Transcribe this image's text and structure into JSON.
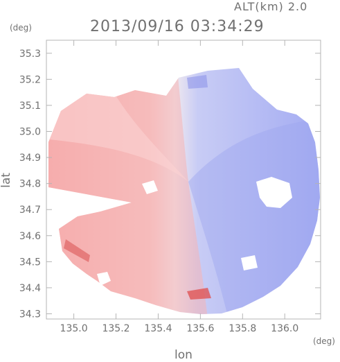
{
  "header": {
    "alt_label": "ALT(km) 2.0",
    "datetime": "2013/09/16 03:34:29",
    "y_unit": "(deg)",
    "x_unit": "(deg)"
  },
  "chart_data": {
    "type": "heatmap",
    "title": "2013/09/16 03:34:29",
    "subtitle": "ALT(km) 2.0",
    "xlabel": "lon",
    "ylabel": "lat",
    "x_unit": "(deg)",
    "y_unit": "(deg)",
    "xlim": [
      134.87,
      136.17
    ],
    "ylim": [
      34.28,
      35.35
    ],
    "x_ticks": [
      135.0,
      135.2,
      135.4,
      135.6,
      135.8,
      136.0
    ],
    "x_tick_labels": [
      "135.0",
      "135.2",
      "135.4",
      "135.6",
      "135.8",
      "136.0"
    ],
    "y_ticks": [
      34.3,
      34.4,
      34.5,
      34.6,
      34.7,
      34.8,
      34.9,
      35.0,
      35.1,
      35.2,
      35.3
    ],
    "y_tick_labels": [
      "34.3",
      "34.4",
      "34.5",
      "34.6",
      "34.7",
      "34.8",
      "34.9",
      "35.0",
      "35.1",
      "35.2",
      "35.3"
    ],
    "colors": {
      "positive": "#f5a0a0",
      "negative": "#a0a8f2",
      "frame": "#b4b4b4"
    },
    "legend": "none"
  }
}
